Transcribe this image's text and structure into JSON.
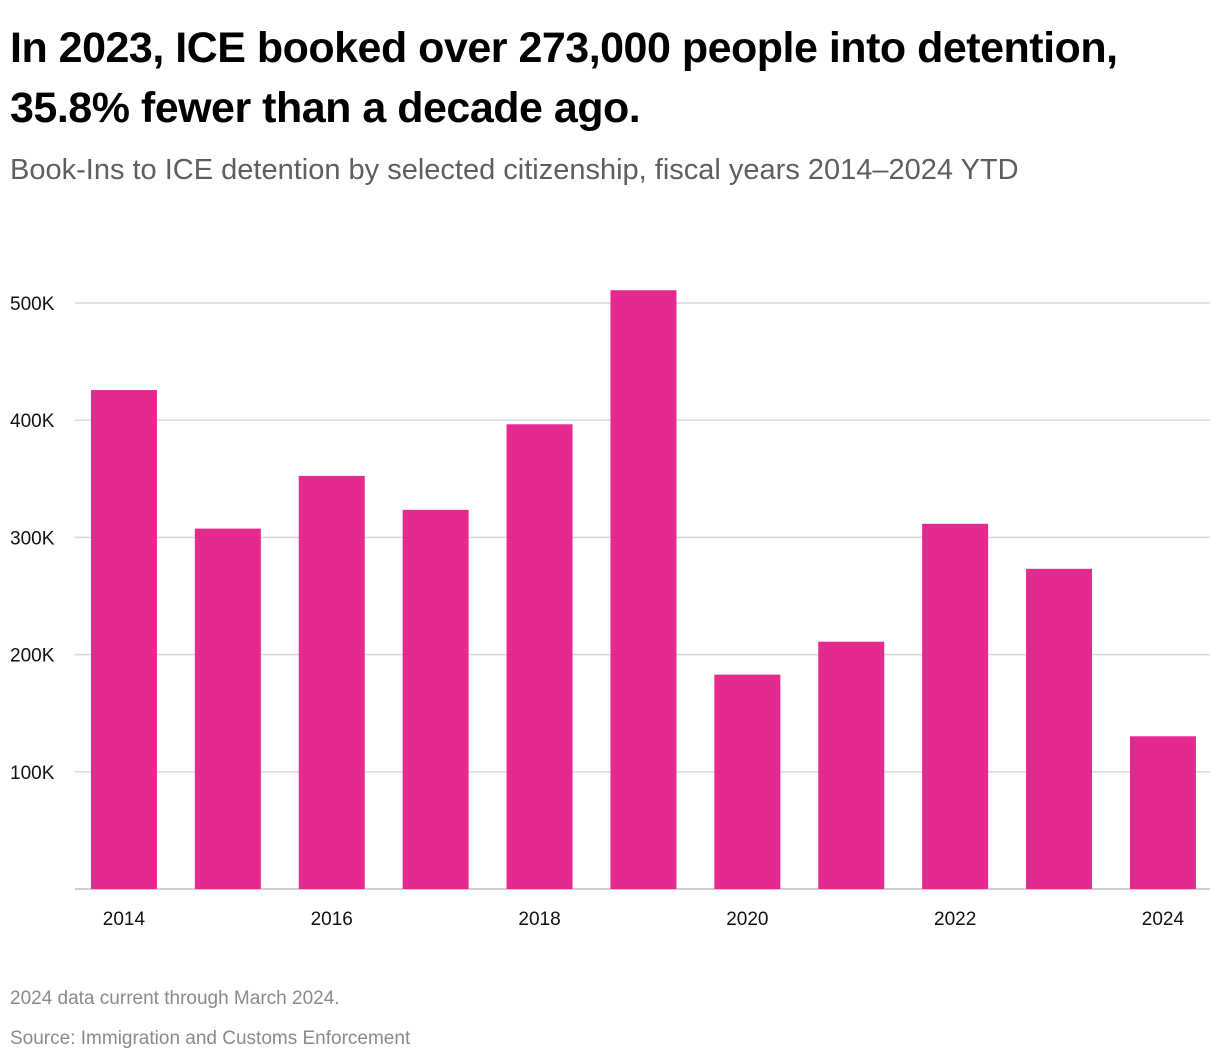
{
  "header": {
    "title": "In 2023, ICE booked over 273,000 people into detention, 35.8% fewer than a decade ago.",
    "subtitle": "Book-Ins to ICE detention by selected citizenship, fiscal years 2014–2024 YTD"
  },
  "footer": {
    "note": "2024 data current through March 2024.",
    "source": "Source: Immigration and Customs Enforcement"
  },
  "colors": {
    "bar": "#e6298f",
    "grid": "#d9d9d9",
    "axis": "#bdbdbd",
    "tick_text": "#111111"
  },
  "chart_data": {
    "type": "bar",
    "title": "In 2023, ICE booked over 273,000 people into detention, 35.8% fewer than a decade ago.",
    "subtitle": "Book-Ins to ICE detention by selected citizenship, fiscal years 2014–2024 YTD",
    "categories": [
      "2014",
      "2015",
      "2016",
      "2017",
      "2018",
      "2019",
      "2020",
      "2021",
      "2022",
      "2023",
      "2024"
    ],
    "x_tick_labels": [
      "2014",
      "",
      "2016",
      "",
      "2018",
      "",
      "2020",
      "",
      "2022",
      "",
      "2024"
    ],
    "series": [
      {
        "name": "Book-Ins",
        "values": [
          425700,
          307500,
          352500,
          323500,
          396500,
          510900,
          182900,
          211000,
          311600,
          273200,
          130300
        ]
      }
    ],
    "xlabel": "",
    "ylabel": "",
    "ylim": [
      0,
      500000
    ],
    "yticks": [
      100000,
      200000,
      300000,
      400000,
      500000
    ],
    "ytick_labels": [
      "100K",
      "200K",
      "300K",
      "400K",
      "500K"
    ],
    "grid": true,
    "legend": "none"
  }
}
